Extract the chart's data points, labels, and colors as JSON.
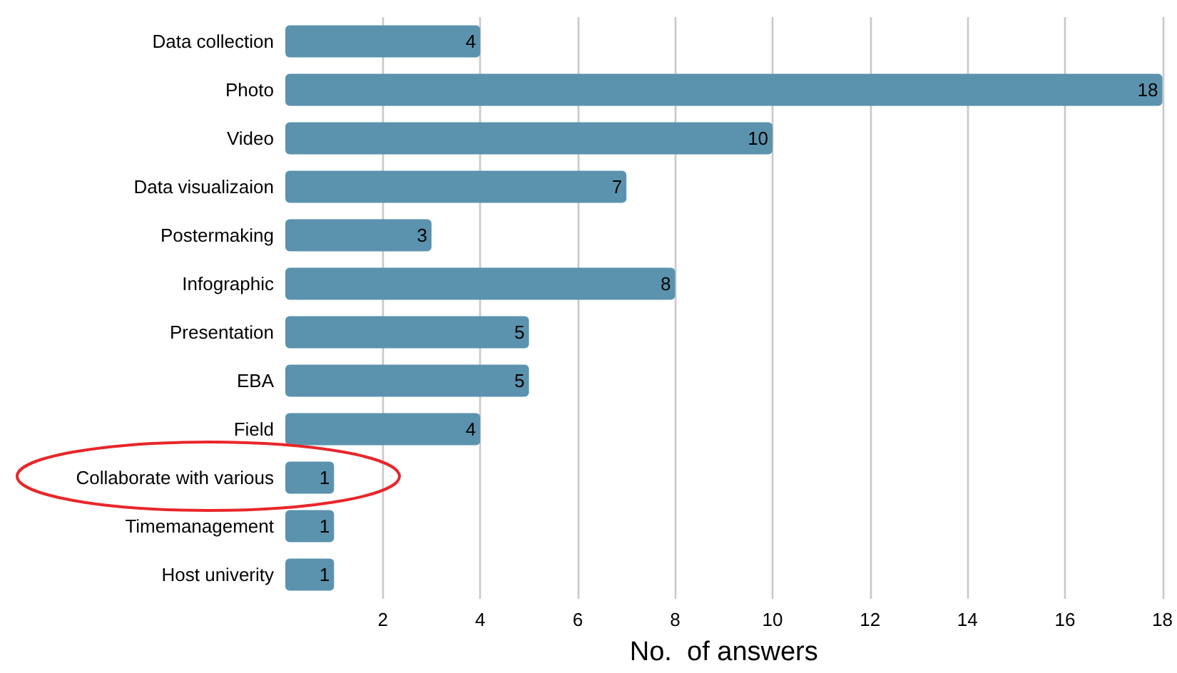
{
  "chart_data": {
    "type": "bar",
    "orientation": "horizontal",
    "xlabel": "No.  of answers",
    "categories": [
      "Data collection",
      "Photo",
      "Video",
      "Data visualizaion",
      "Postermaking",
      "Infographic",
      "Presentation",
      "EBA",
      "Field",
      "Collaborate with various",
      "Timemanagement",
      "Host univerity"
    ],
    "values": [
      4,
      18,
      10,
      7,
      3,
      8,
      5,
      5,
      4,
      1,
      1,
      1
    ],
    "color": "#5b93ae",
    "xlim": [
      0,
      18
    ],
    "xticks": [
      2,
      4,
      6,
      8,
      10,
      12,
      14,
      16,
      18
    ],
    "grid": "x",
    "data_labels": true
  }
}
